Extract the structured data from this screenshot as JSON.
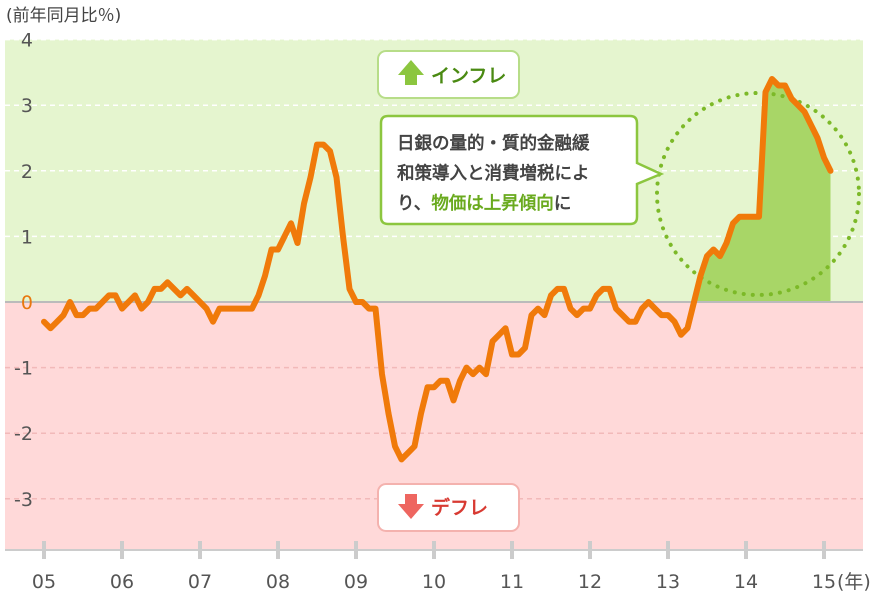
{
  "chart_data": {
    "type": "line",
    "title": "",
    "ylabel": "(前年同月比％)",
    "xlabel": "",
    "x_unit": "(年)",
    "ylim": [
      -3.8,
      4
    ],
    "y_ticks": [
      "4",
      "3",
      "2",
      "1",
      "0",
      "-1",
      "-2",
      "-3"
    ],
    "x_ticks": [
      "05",
      "06",
      "07",
      "08",
      "09",
      "10",
      "11",
      "12",
      "13",
      "14",
      "15"
    ],
    "grid": "dashed-horizontal",
    "zones": {
      "inflation": {
        "label": "インフレ",
        "color": "#e5f5cf",
        "accent": "#8cc63f"
      },
      "deflation": {
        "label": "デフレ",
        "color": "#ffd9d9",
        "accent": "#ee6660"
      }
    },
    "line_color": "#f07a0a",
    "series": [
      {
        "x": [
          2005.0,
          2005.083,
          2005.167,
          2005.25,
          2005.333,
          2005.417,
          2005.5,
          2005.583,
          2005.667,
          2005.75,
          2005.833,
          2005.917,
          2006.0,
          2006.083,
          2006.167,
          2006.25,
          2006.333,
          2006.417,
          2006.5,
          2006.583,
          2006.667,
          2006.75,
          2006.833,
          2006.917,
          2007.0,
          2007.083,
          2007.167,
          2007.25,
          2007.333,
          2007.417,
          2007.5,
          2007.583,
          2007.667,
          2007.75,
          2007.833,
          2007.917,
          2008.0,
          2008.083,
          2008.167,
          2008.25,
          2008.333,
          2008.417,
          2008.5,
          2008.583,
          2008.667,
          2008.75,
          2008.833,
          2008.917,
          2009.0,
          2009.083,
          2009.167,
          2009.25,
          2009.333,
          2009.417,
          2009.5,
          2009.583,
          2009.667,
          2009.75,
          2009.833,
          2009.917,
          2010.0,
          2010.083,
          2010.167,
          2010.25,
          2010.333,
          2010.417,
          2010.5,
          2010.583,
          2010.667,
          2010.75,
          2010.833,
          2010.917,
          2011.0,
          2011.083,
          2011.167,
          2011.25,
          2011.333,
          2011.417,
          2011.5,
          2011.583,
          2011.667,
          2011.75,
          2011.833,
          2011.917,
          2012.0,
          2012.083,
          2012.167,
          2012.25,
          2012.333,
          2012.417,
          2012.5,
          2012.583,
          2012.667,
          2012.75,
          2012.833,
          2012.917,
          2013.0,
          2013.083,
          2013.167,
          2013.25,
          2013.333,
          2013.417,
          2013.5,
          2013.583,
          2013.667,
          2013.75,
          2013.833,
          2013.917,
          2014.0,
          2014.083,
          2014.167,
          2014.25,
          2014.333,
          2014.417,
          2014.5,
          2014.583,
          2014.667,
          2014.75,
          2014.833,
          2014.917,
          2015.0,
          2015.083
        ],
        "values": [
          -0.3,
          -0.4,
          -0.3,
          -0.2,
          0.0,
          -0.2,
          -0.2,
          -0.1,
          -0.1,
          0.0,
          0.1,
          0.1,
          -0.1,
          0.0,
          0.1,
          -0.1,
          0.0,
          0.2,
          0.2,
          0.3,
          0.2,
          0.1,
          0.2,
          0.1,
          0.0,
          -0.1,
          -0.3,
          -0.1,
          -0.1,
          -0.1,
          -0.1,
          -0.1,
          -0.1,
          0.1,
          0.4,
          0.8,
          0.8,
          1.0,
          1.2,
          0.9,
          1.5,
          1.9,
          2.4,
          2.4,
          2.3,
          1.9,
          1.0,
          0.2,
          0.0,
          0.0,
          -0.1,
          -0.1,
          -1.1,
          -1.7,
          -2.2,
          -2.4,
          -2.3,
          -2.2,
          -1.7,
          -1.3,
          -1.3,
          -1.2,
          -1.2,
          -1.5,
          -1.2,
          -1.0,
          -1.1,
          -1.0,
          -1.1,
          -0.6,
          -0.5,
          -0.4,
          -0.8,
          -0.8,
          -0.7,
          -0.2,
          -0.1,
          -0.2,
          0.1,
          0.2,
          0.2,
          -0.1,
          -0.2,
          -0.1,
          -0.1,
          0.1,
          0.2,
          0.2,
          -0.1,
          -0.2,
          -0.3,
          -0.3,
          -0.1,
          0.0,
          -0.1,
          -0.2,
          -0.2,
          -0.3,
          -0.5,
          -0.4,
          0.0,
          0.4,
          0.7,
          0.8,
          0.7,
          0.9,
          1.2,
          1.3,
          1.3,
          1.3,
          1.3,
          3.2,
          3.4,
          3.3,
          3.3,
          3.1,
          3.0,
          2.9,
          2.7,
          2.5,
          2.2,
          2.0
        ]
      }
    ],
    "shaded_region": {
      "from": 2013.333,
      "to": 2015.083,
      "color": "#a8d667"
    },
    "callout": {
      "lines": [
        [
          {
            "text": "日銀の量的・質的金融緩",
            "highlight": false
          }
        ],
        [
          {
            "text": "和策導入と消費増税によ",
            "highlight": false
          }
        ],
        [
          {
            "text": "り、",
            "highlight": false
          },
          {
            "text": "物価は上昇傾向",
            "highlight": true
          },
          {
            "text": "に",
            "highlight": false
          }
        ]
      ],
      "highlight_color": "#6aaa1e",
      "circle_color": "#7cb928"
    }
  }
}
